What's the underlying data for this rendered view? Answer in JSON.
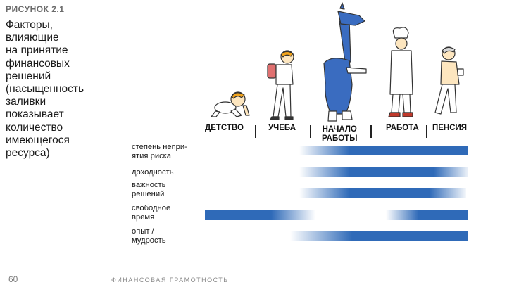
{
  "figure": {
    "label": "РИСУНОК 2.1",
    "caption_lines": [
      "Факторы,",
      "влияющие",
      "на принятие",
      "финансовых",
      "решений",
      "(насыщенность",
      "заливки",
      "показывает",
      "количество",
      "имеющегося",
      "ресурса)"
    ]
  },
  "stages": [
    {
      "label": "ДЕТСТВО"
    },
    {
      "label": "УЧЕБА"
    },
    {
      "label_lines": [
        "НАЧАЛО",
        "РАБОТЫ"
      ]
    },
    {
      "label": "РАБОТА"
    },
    {
      "label": "ПЕНСИЯ"
    }
  ],
  "icons": [
    "crawling-baby-icon",
    "student-with-backpack-icon",
    "giraffe-worker-icon",
    "chef-worker-icon",
    "old-man-with-cup-icon"
  ],
  "rows": [
    {
      "label_lines": [
        "степень непри-",
        "ятия риска"
      ]
    },
    {
      "label_lines": [
        "доходность"
      ]
    },
    {
      "label_lines": [
        "важность",
        "решений"
      ]
    },
    {
      "label_lines": [
        "свободное",
        "время"
      ]
    },
    {
      "label_lines": [
        "опыт /",
        "мудрость"
      ]
    }
  ],
  "colors": {
    "bar": "#2f6ab8",
    "skin": "#fde6bf",
    "hair": "#f1a31b",
    "giraffe": "#3a6cc0",
    "backpack": "#e07070"
  },
  "footer": {
    "page_number": "60",
    "title": "ФИНАНСОВАЯ ГРАМОТНОСТЬ"
  }
}
